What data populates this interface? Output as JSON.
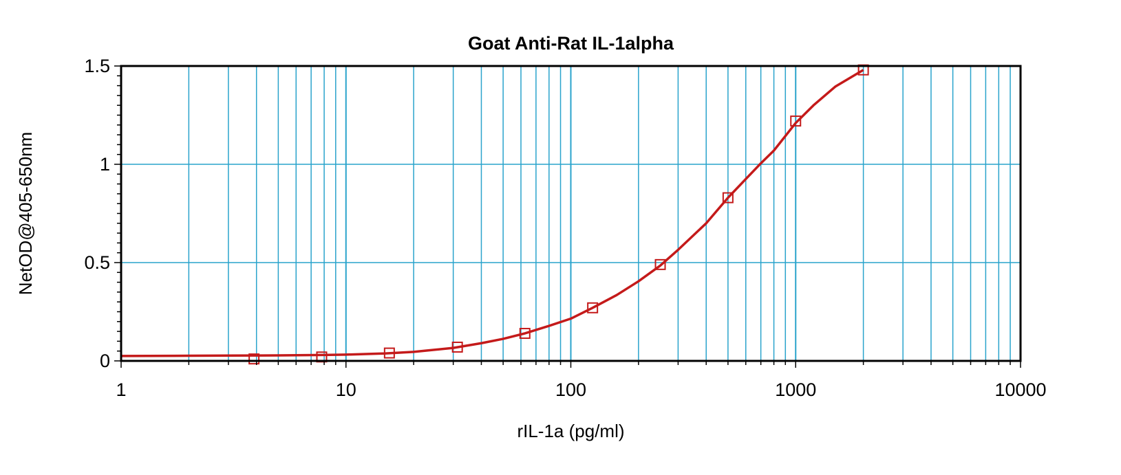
{
  "chart_data": {
    "type": "scatter",
    "title": "Goat Anti-Rat IL-1alpha",
    "xlabel": "rIL-1a (pg/ml)",
    "ylabel": "NetOD@405-650nm",
    "x_scale": "log",
    "xlim": [
      1,
      10000
    ],
    "ylim": [
      0,
      1.5
    ],
    "x_ticks": [
      1,
      10,
      100,
      1000,
      10000
    ],
    "x_tick_labels": [
      "1",
      "10",
      "100",
      "1000",
      "10000"
    ],
    "y_ticks": [
      0,
      0.5,
      1,
      1.5
    ],
    "y_tick_labels": [
      "0",
      "0.5",
      "1",
      "1.5"
    ],
    "grid": true,
    "colors": {
      "grid": "#29a3cc",
      "series": "#c41a1a",
      "axis": "#000000"
    },
    "series": [
      {
        "marker": "square",
        "x": [
          3.9,
          7.8,
          15.6,
          31.3,
          62.5,
          125,
          250,
          500,
          1000,
          2000
        ],
        "values": [
          0.01,
          0.02,
          0.04,
          0.07,
          0.14,
          0.27,
          0.49,
          0.83,
          1.22,
          1.48
        ]
      }
    ],
    "fit_curve": {
      "x": [
        1,
        2,
        3,
        5,
        8,
        10,
        15,
        20,
        30,
        40,
        50,
        62.5,
        80,
        100,
        125,
        160,
        200,
        250,
        300,
        400,
        500,
        600,
        700,
        800,
        1000,
        1200,
        1500,
        2000
      ],
      "y": [
        0.025,
        0.026,
        0.027,
        0.028,
        0.03,
        0.032,
        0.038,
        0.046,
        0.066,
        0.09,
        0.112,
        0.14,
        0.178,
        0.215,
        0.27,
        0.335,
        0.405,
        0.485,
        0.565,
        0.7,
        0.83,
        0.925,
        1.005,
        1.07,
        1.21,
        1.3,
        1.395,
        1.48
      ]
    }
  }
}
